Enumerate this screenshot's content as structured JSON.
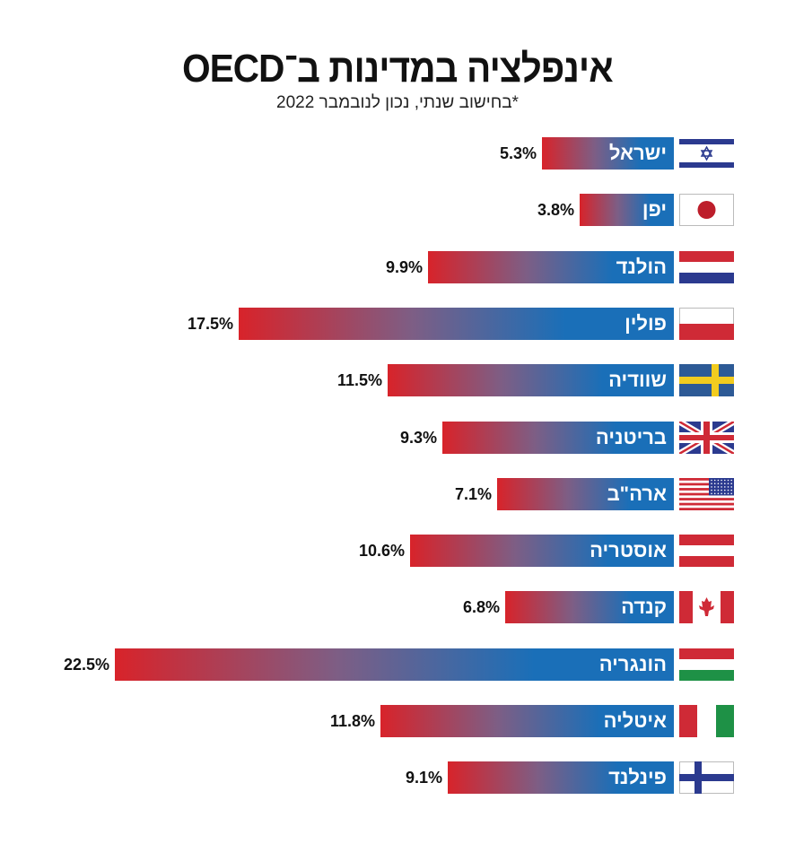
{
  "title": "אינפלציה במדינות ב־OECD",
  "subtitle": "*בחישוב שנתי, נכון לנובמבר 2022",
  "chart_data": {
    "type": "bar",
    "orientation": "horizontal",
    "title": "אינפלציה במדינות ב־OECD",
    "subtitle": "*בחישוב שנתי, נכון לנובמבר 2022",
    "unit": "%",
    "categories": [
      "ישראל",
      "יפן",
      "הולנד",
      "פולין",
      "שוודיה",
      "בריטניה",
      "ארה\"ב",
      "אוסטריה",
      "קנדה",
      "הונגריה",
      "איטליה",
      "פינלנד"
    ],
    "flags": [
      "israel-flag",
      "japan-flag",
      "netherlands-flag",
      "poland-flag",
      "sweden-flag",
      "uk-flag",
      "usa-flag",
      "austria-flag",
      "canada-flag",
      "hungary-flag",
      "italy-flag",
      "finland-flag"
    ],
    "values": [
      5.3,
      3.8,
      9.9,
      17.5,
      11.5,
      9.3,
      7.1,
      10.6,
      6.8,
      22.5,
      11.8,
      9.1
    ],
    "value_labels": [
      "5.3%",
      "3.8%",
      "9.9%",
      "17.5%",
      "11.5%",
      "9.3%",
      "7.1%",
      "10.6%",
      "6.8%",
      "22.5%",
      "11.8%",
      "9.1%"
    ],
    "colors": {
      "start": "#d8232a",
      "end": "#1a6fb8"
    },
    "grid": false
  }
}
